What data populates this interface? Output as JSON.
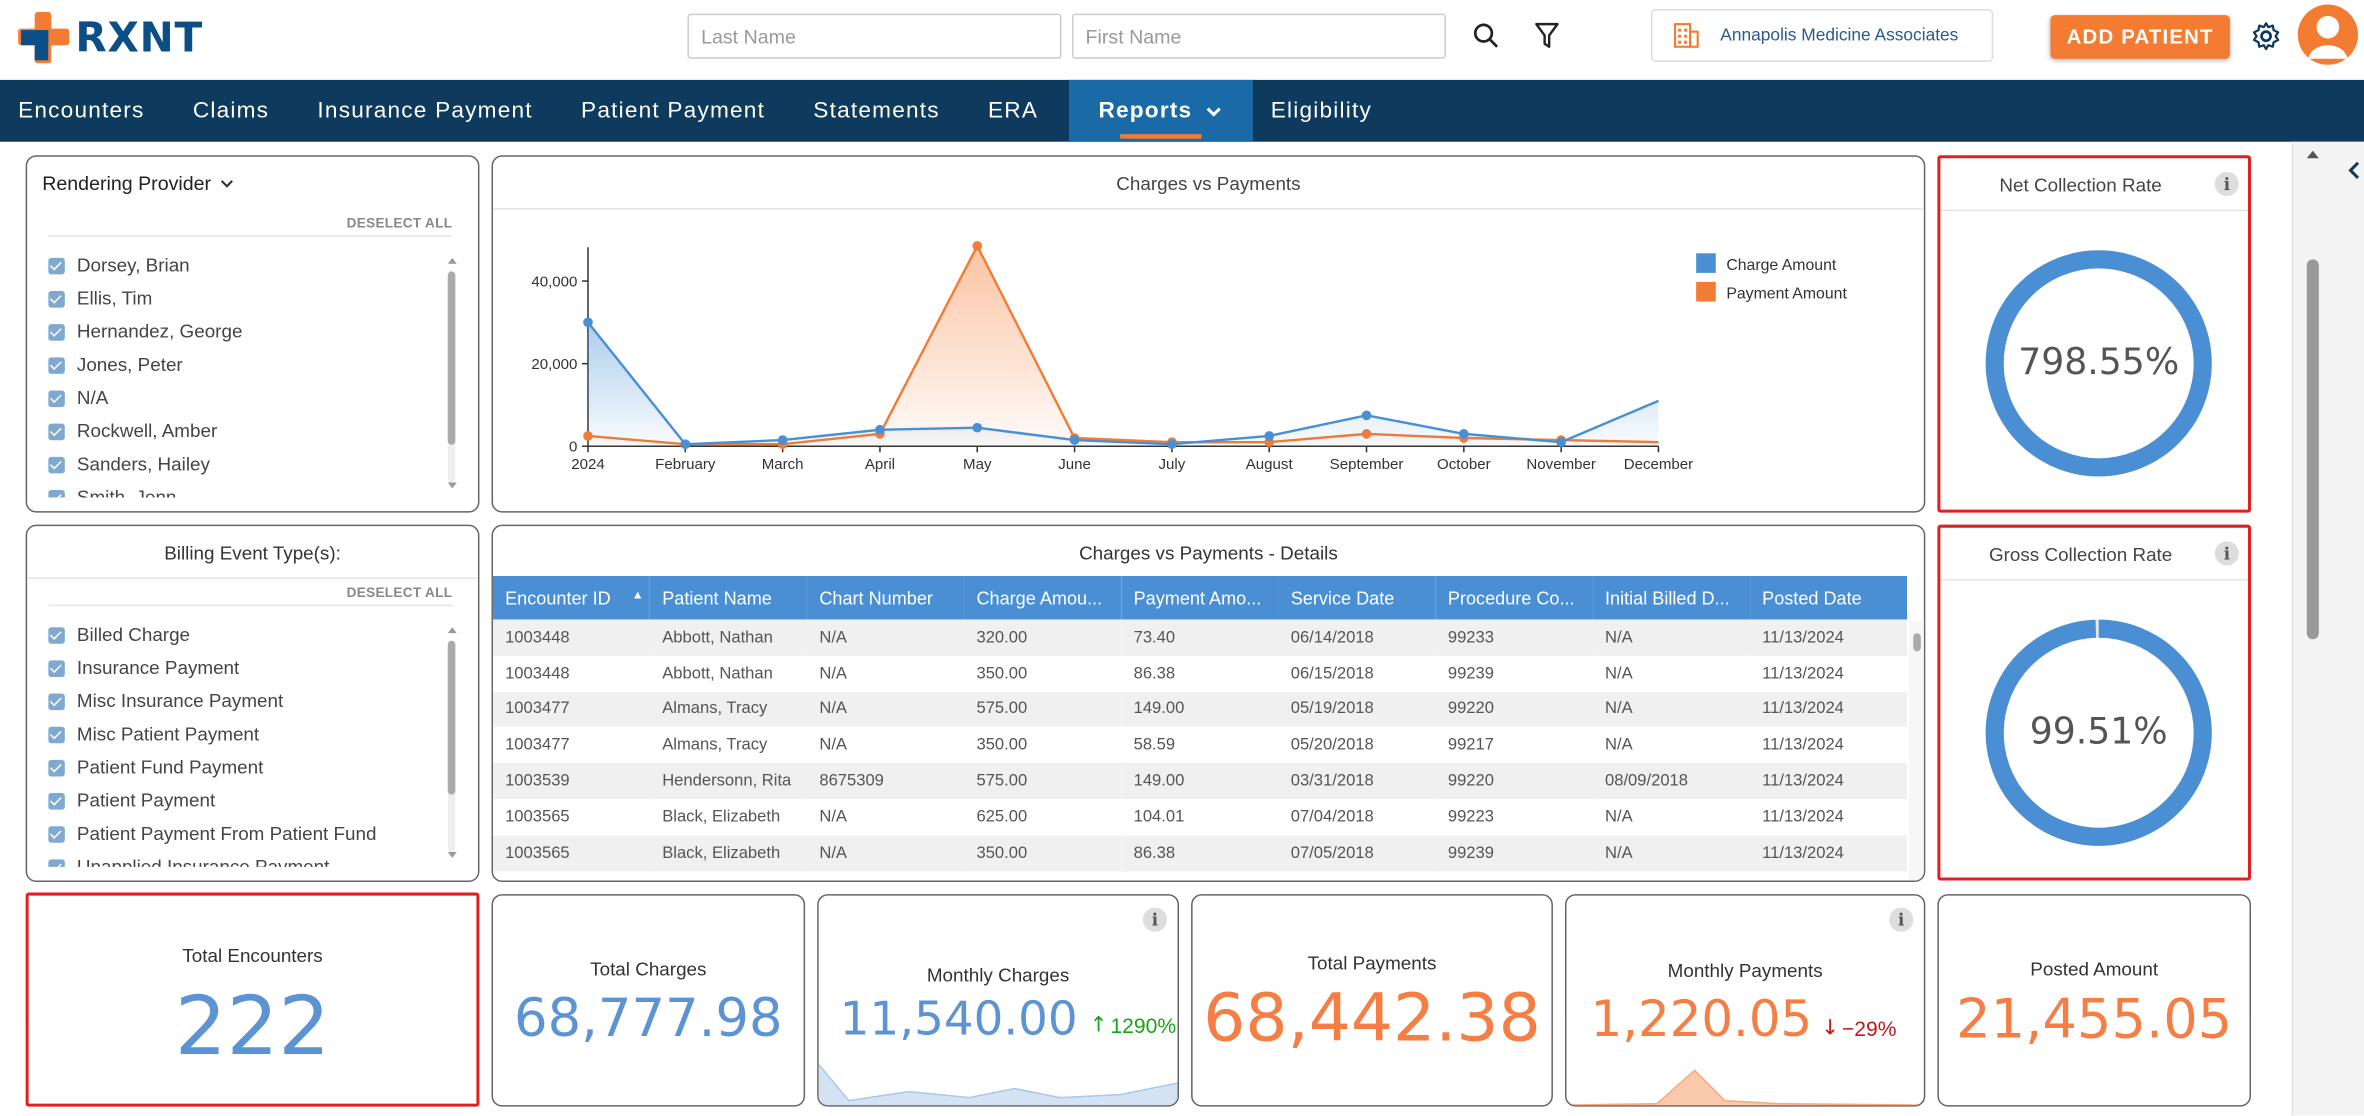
{
  "header": {
    "logo_text": "RXNT",
    "last_name_placeholder": "Last Name",
    "first_name_placeholder": "First Name",
    "practice_name": "Annapolis Medicine Associates",
    "add_patient_label": "ADD PATIENT"
  },
  "nav": {
    "items": [
      "Encounters",
      "Claims",
      "Insurance Payment",
      "Patient Payment",
      "Statements",
      "ERA",
      "Reports",
      "Eligibility"
    ],
    "active": "Reports"
  },
  "provider_filter": {
    "title": "Rendering Provider",
    "deselect_label": "DESELECT ALL",
    "items": [
      "Dorsey, Brian",
      "Ellis, Tim",
      "Hernandez, George",
      "Jones, Peter",
      "N/A",
      "Rockwell, Amber",
      "Sanders, Hailey",
      "Smith, Jenn"
    ]
  },
  "billing_filter": {
    "title": "Billing Event Type(s):",
    "deselect_label": "DESELECT ALL",
    "items": [
      "Billed Charge",
      "Insurance Payment",
      "Misc Insurance Payment",
      "Misc Patient Payment",
      "Patient Fund Payment",
      "Patient Payment",
      "Patient Payment From Patient Fund",
      "Unapplied Insurance Payment"
    ]
  },
  "chart_data": {
    "type": "area",
    "title": "Charges vs Payments",
    "categories": [
      "2024",
      "February",
      "March",
      "April",
      "May",
      "June",
      "July",
      "August",
      "September",
      "October",
      "November",
      "December"
    ],
    "y_ticks": [
      "0",
      "20,000",
      "40,000"
    ],
    "ylim": [
      0,
      50000
    ],
    "legend_position": "top-right",
    "series": [
      {
        "name": "Charge Amount",
        "color": "#4a8fd4",
        "values": [
          30000,
          500,
          1500,
          4000,
          4500,
          1500,
          500,
          2500,
          7500,
          3000,
          1000,
          11000
        ]
      },
      {
        "name": "Payment Amount",
        "color": "#f47b32",
        "values": [
          2500,
          500,
          500,
          3000,
          48500,
          2000,
          1000,
          1000,
          3000,
          2000,
          1500,
          1000
        ]
      }
    ]
  },
  "net_rate": {
    "title": "Net Collection Rate",
    "value": "798.55%",
    "fraction": 1.0
  },
  "gross_rate": {
    "title": "Gross Collection Rate",
    "value": "99.51%",
    "fraction": 0.9951
  },
  "details": {
    "title": "Charges vs Payments - Details",
    "columns": [
      "Encounter ID",
      "Patient Name",
      "Chart Number",
      "Charge Amou...",
      "Payment Amo...",
      "Service Date",
      "Procedure Co...",
      "Initial Billed D...",
      "Posted Date"
    ],
    "rows": [
      [
        "1003448",
        "Abbott, Nathan",
        "N/A",
        "320.00",
        "73.40",
        "06/14/2018",
        "99233",
        "N/A",
        "11/13/2024"
      ],
      [
        "1003448",
        "Abbott, Nathan",
        "N/A",
        "350.00",
        "86.38",
        "06/15/2018",
        "99239",
        "N/A",
        "11/13/2024"
      ],
      [
        "1003477",
        "Almans, Tracy",
        "N/A",
        "575.00",
        "149.00",
        "05/19/2018",
        "99220",
        "N/A",
        "11/13/2024"
      ],
      [
        "1003477",
        "Almans, Tracy",
        "N/A",
        "350.00",
        "58.59",
        "05/20/2018",
        "99217",
        "N/A",
        "11/13/2024"
      ],
      [
        "1003539",
        "Hendersonn, Rita",
        "8675309",
        "575.00",
        "149.00",
        "03/31/2018",
        "99220",
        "08/09/2018",
        "11/13/2024"
      ],
      [
        "1003565",
        "Black, Elizabeth",
        "N/A",
        "625.00",
        "104.01",
        "07/04/2018",
        "99223",
        "N/A",
        "11/13/2024"
      ],
      [
        "1003565",
        "Black, Elizabeth",
        "N/A",
        "350.00",
        "86.38",
        "07/05/2018",
        "99239",
        "N/A",
        "11/13/2024"
      ]
    ]
  },
  "kpis": {
    "total_encounters": {
      "label": "Total Encounters",
      "value": "222"
    },
    "total_charges": {
      "label": "Total Charges",
      "value": "68,777.98"
    },
    "monthly_charges": {
      "label": "Monthly Charges",
      "value": "11,540.00",
      "change": "1290%"
    },
    "total_payments": {
      "label": "Total Payments",
      "value": "68,442.38"
    },
    "monthly_payments": {
      "label": "Monthly Payments",
      "value": "1,220.05",
      "change": "−29%"
    },
    "posted_amount": {
      "label": "Posted Amount",
      "value": "21,455.05"
    }
  },
  "colors": {
    "nav_bg": "#0e3a5e",
    "nav_active": "#1a6aa8",
    "accent_orange": "#f47b32",
    "accent_blue": "#4a8fd4",
    "highlight_red": "#e02020"
  }
}
